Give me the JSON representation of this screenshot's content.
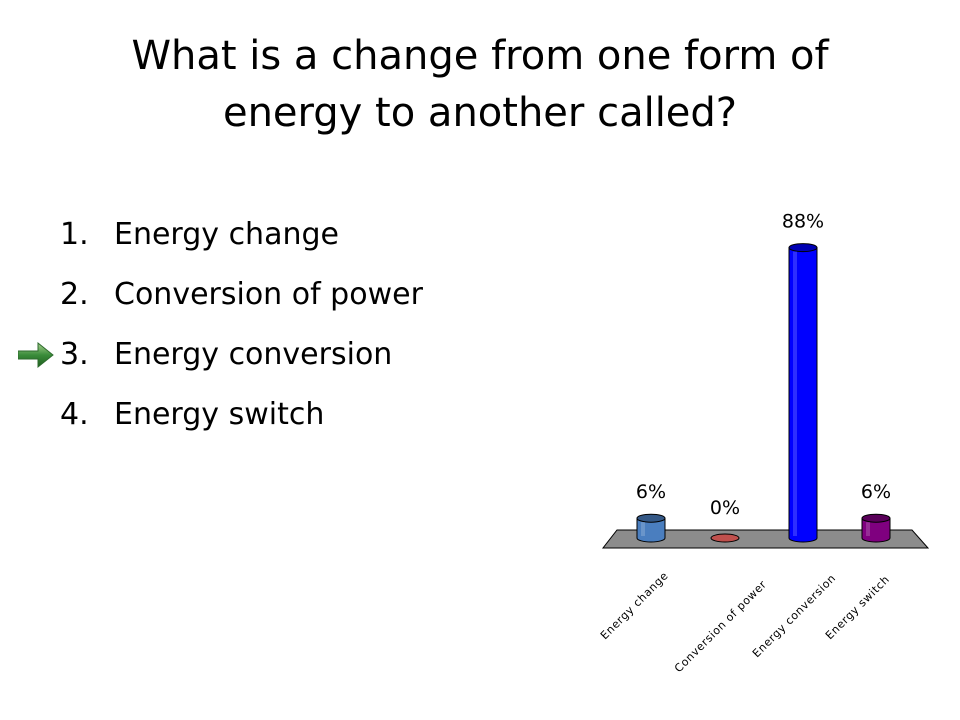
{
  "question": {
    "line1": "What is a change from one form of",
    "line2": "energy to another called?"
  },
  "answers": [
    {
      "number": "1.",
      "label": "Energy change"
    },
    {
      "number": "2.",
      "label": "Conversion of power"
    },
    {
      "number": "3.",
      "label": "Energy conversion",
      "correct": true
    },
    {
      "number": "4.",
      "label": "Energy switch"
    }
  ],
  "chart_data": {
    "type": "bar",
    "categories": [
      "Energy change",
      "Conversion of power",
      "Energy conversion",
      "Energy switch"
    ],
    "values": [
      6,
      0,
      88,
      6
    ],
    "data_labels": [
      "6%",
      "0%",
      "88%",
      "6%"
    ],
    "colors": [
      "#4a7ebf",
      "#c0504d",
      "#0000ff",
      "#7f007f"
    ],
    "ylim": [
      0,
      100
    ],
    "grid": false,
    "legend": "none"
  }
}
